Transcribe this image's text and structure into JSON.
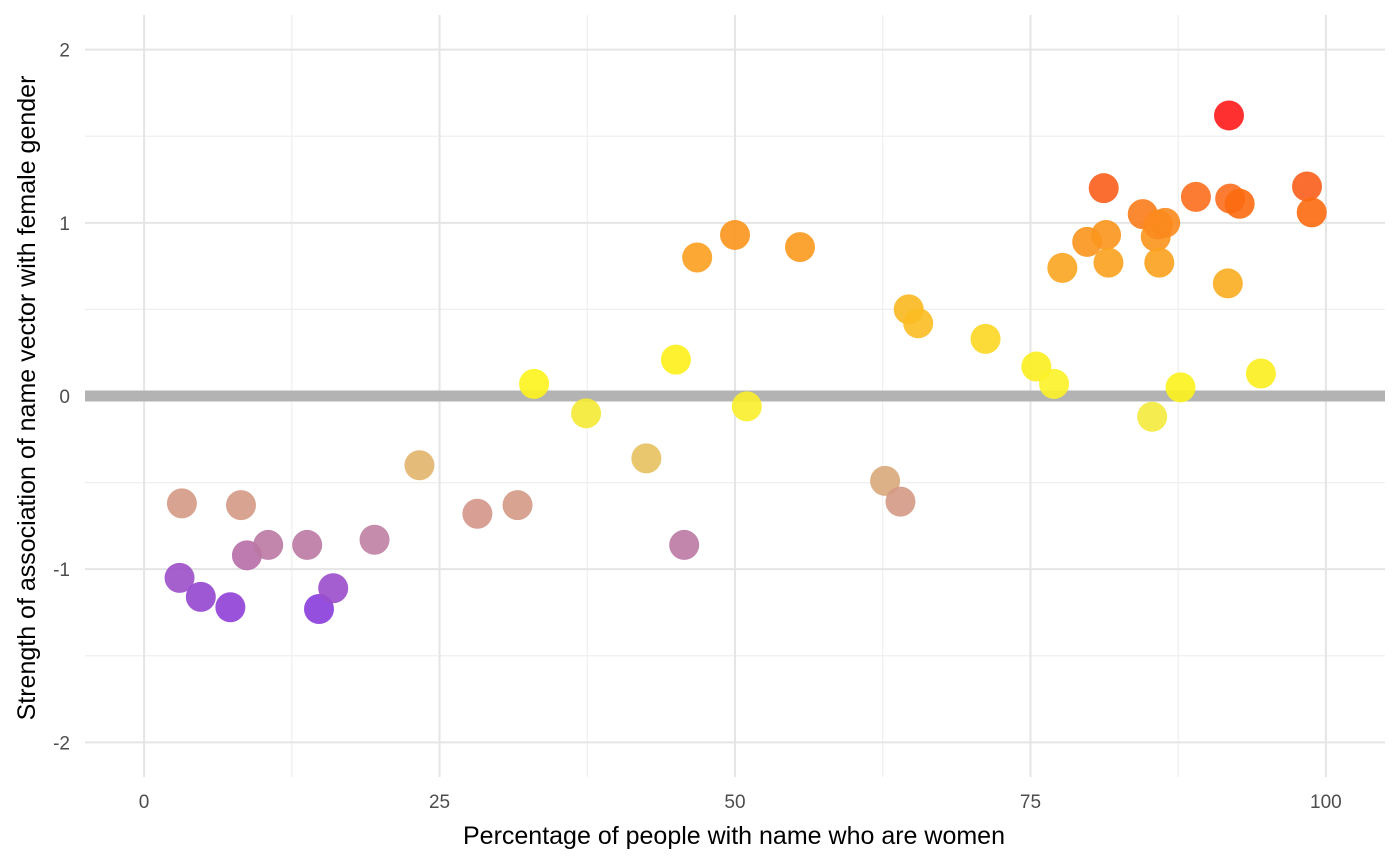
{
  "chart_data": {
    "type": "scatter",
    "title": "",
    "xlabel": "Percentage of people with name who are women",
    "ylabel": "Strength of association of name vector with female gender",
    "xlim": [
      -5,
      105
    ],
    "ylim": [
      -2.2,
      2.2
    ],
    "x_ticks": [
      0,
      25,
      50,
      75,
      100
    ],
    "x_tick_labels": [
      "0",
      "25",
      "50",
      "75",
      "100"
    ],
    "y_ticks": [
      -2,
      -1,
      0,
      1,
      2
    ],
    "y_tick_labels": [
      "-2",
      "-1",
      "0",
      "1",
      "2"
    ],
    "grid": true,
    "reference_line": {
      "y": 0,
      "color": "#b3b3b3"
    },
    "points": [
      {
        "x": 3.0,
        "y": -1.05,
        "color": "#9b4fc9"
      },
      {
        "x": 3.2,
        "y": -0.62,
        "color": "#d49a85"
      },
      {
        "x": 4.8,
        "y": -1.16,
        "color": "#9546cf"
      },
      {
        "x": 7.3,
        "y": -1.22,
        "color": "#8f3fd7"
      },
      {
        "x": 8.2,
        "y": -0.63,
        "color": "#d49a85"
      },
      {
        "x": 8.7,
        "y": -0.92,
        "color": "#b66da6"
      },
      {
        "x": 10.5,
        "y": -0.86,
        "color": "#bb78a3"
      },
      {
        "x": 13.8,
        "y": -0.86,
        "color": "#bb78a3"
      },
      {
        "x": 14.8,
        "y": -1.23,
        "color": "#8a3cdb"
      },
      {
        "x": 16.0,
        "y": -1.11,
        "color": "#9a4cca"
      },
      {
        "x": 19.5,
        "y": -0.83,
        "color": "#c07fa2"
      },
      {
        "x": 23.3,
        "y": -0.4,
        "color": "#e2b46c"
      },
      {
        "x": 28.2,
        "y": -0.68,
        "color": "#d4958a"
      },
      {
        "x": 31.6,
        "y": -0.63,
        "color": "#d49a85"
      },
      {
        "x": 33.0,
        "y": 0.07,
        "color": "#fdf31c"
      },
      {
        "x": 37.4,
        "y": -0.1,
        "color": "#f4ea34"
      },
      {
        "x": 42.5,
        "y": -0.36,
        "color": "#e6c15e"
      },
      {
        "x": 45.0,
        "y": 0.21,
        "color": "#fdf01a"
      },
      {
        "x": 45.7,
        "y": -0.86,
        "color": "#bb78a3"
      },
      {
        "x": 46.8,
        "y": 0.8,
        "color": "#fb9e1f"
      },
      {
        "x": 50.0,
        "y": 0.93,
        "color": "#fb951d"
      },
      {
        "x": 51.0,
        "y": -0.06,
        "color": "#f8ee2a"
      },
      {
        "x": 55.5,
        "y": 0.86,
        "color": "#fb9a1e"
      },
      {
        "x": 62.7,
        "y": -0.49,
        "color": "#d9a87a"
      },
      {
        "x": 64.0,
        "y": -0.61,
        "color": "#d49a85"
      },
      {
        "x": 64.7,
        "y": 0.5,
        "color": "#fbb820"
      },
      {
        "x": 65.5,
        "y": 0.42,
        "color": "#fbbd21"
      },
      {
        "x": 71.2,
        "y": 0.33,
        "color": "#fcd723"
      },
      {
        "x": 75.5,
        "y": 0.17,
        "color": "#fcee1f"
      },
      {
        "x": 77.0,
        "y": 0.07,
        "color": "#fcf228"
      },
      {
        "x": 77.7,
        "y": 0.74,
        "color": "#fba51f"
      },
      {
        "x": 79.8,
        "y": 0.89,
        "color": "#fb951d"
      },
      {
        "x": 81.2,
        "y": 1.2,
        "color": "#fb5e1c"
      },
      {
        "x": 81.4,
        "y": 0.93,
        "color": "#fb951d"
      },
      {
        "x": 81.6,
        "y": 0.77,
        "color": "#fba11e"
      },
      {
        "x": 84.5,
        "y": 1.05,
        "color": "#fb7c1c"
      },
      {
        "x": 85.3,
        "y": -0.12,
        "color": "#f4ea3c"
      },
      {
        "x": 85.6,
        "y": 0.92,
        "color": "#fb951d"
      },
      {
        "x": 85.8,
        "y": 0.99,
        "color": "#fb8a1d"
      },
      {
        "x": 85.9,
        "y": 0.77,
        "color": "#fba11e"
      },
      {
        "x": 86.4,
        "y": 1.0,
        "color": "#fb8a1d"
      },
      {
        "x": 87.7,
        "y": 0.05,
        "color": "#fcf31c"
      },
      {
        "x": 89.0,
        "y": 1.15,
        "color": "#fb6e1c"
      },
      {
        "x": 91.7,
        "y": 0.65,
        "color": "#fbad20"
      },
      {
        "x": 91.8,
        "y": 1.62,
        "color": "#ff1a1a"
      },
      {
        "x": 91.9,
        "y": 1.14,
        "color": "#fb6e1c"
      },
      {
        "x": 92.7,
        "y": 1.11,
        "color": "#fb6a10"
      },
      {
        "x": 94.5,
        "y": 0.13,
        "color": "#fcee1f"
      },
      {
        "x": 98.4,
        "y": 1.21,
        "color": "#fb5e1c"
      },
      {
        "x": 98.8,
        "y": 1.06,
        "color": "#fb6a10"
      }
    ]
  }
}
